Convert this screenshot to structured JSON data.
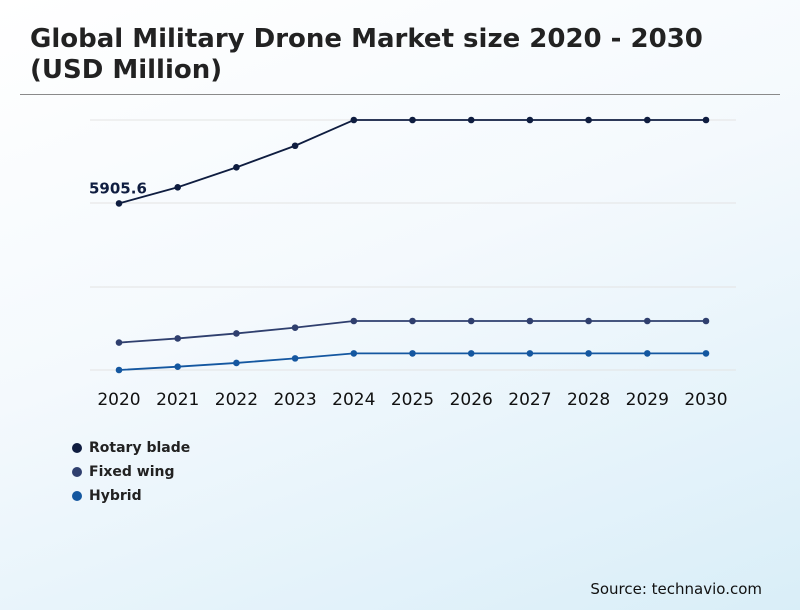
{
  "header": {
    "title": "Global Military Drone Market size 2020 - 2030 (USD Million)"
  },
  "chart_data": {
    "type": "line",
    "categories": [
      "2020",
      "2021",
      "2022",
      "2023",
      "2024",
      "2025",
      "2026",
      "2027",
      "2028",
      "2029",
      "2030"
    ],
    "series": [
      {
        "name": "Rotary blade",
        "color": "#0f1d40",
        "values": [
          5905.6,
          6100,
          6340,
          6600,
          6910,
          6910,
          6910,
          6910,
          6910,
          6910,
          6910
        ]
      },
      {
        "name": "Fixed wing",
        "color": "#2f3f6e",
        "values": [
          4230,
          4280,
          4340,
          4410,
          4490,
          4490,
          4490,
          4490,
          4490,
          4490,
          4490
        ]
      },
      {
        "name": "Hybrid",
        "color": "#1457a0",
        "values": [
          3900,
          3940,
          3985,
          4040,
          4100,
          4100,
          4100,
          4100,
          4100,
          4100,
          4100
        ]
      }
    ],
    "annotations": [
      {
        "series": "Rotary blade",
        "category": "2020",
        "text": "5905.6"
      }
    ],
    "ylim": [
      3900,
      6910
    ],
    "grid": true,
    "xlabel": "",
    "ylabel": "",
    "legend": "bottom-left"
  },
  "footer": {
    "source": "Source: technavio.com"
  }
}
